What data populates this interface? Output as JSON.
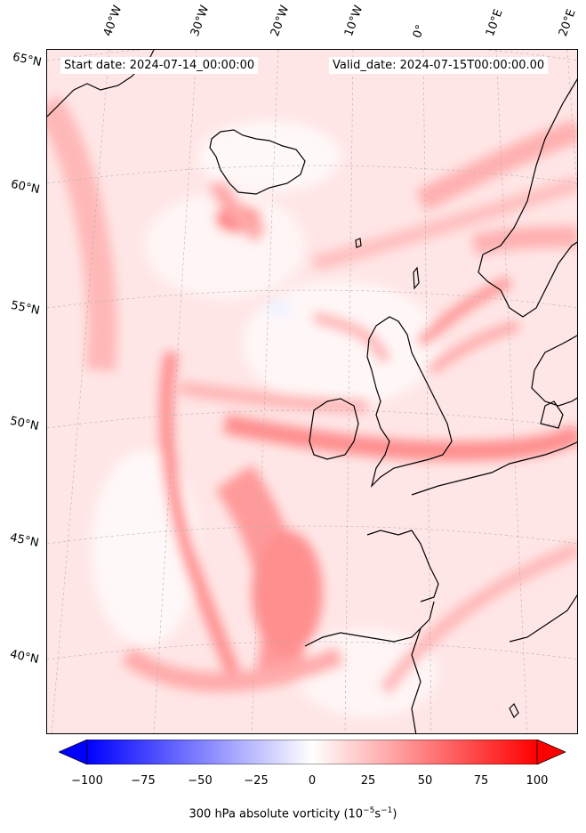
{
  "map": {
    "start_date": "Start date: 2024-07-14_00:00:00",
    "valid_date": "Valid_date: 2024-07-15T00:00:00.00",
    "lon_labels": [
      "40°W",
      "30°W",
      "20°W",
      "10°W",
      "0°",
      "10°E",
      "20°E"
    ],
    "lat_labels": [
      "65°N",
      "60°N",
      "55°N",
      "50°N",
      "45°N",
      "40°N"
    ],
    "field": "300 hPa absolute vorticity",
    "colormap": "bwr",
    "colors": {
      "max": "#ff0000",
      "mid": "#ffffff",
      "min": "#0000ff",
      "coast": "#000000"
    }
  },
  "colorbar": {
    "ticks": [
      "−100",
      "−75",
      "−50",
      "−25",
      "0",
      "25",
      "50",
      "75",
      "100"
    ],
    "label_main": "300 hPa absolute vorticity (10",
    "label_exp1": "−5",
    "label_mid": "s",
    "label_exp2": "−1",
    "label_end": ")",
    "range": [
      -100,
      100
    ],
    "extend": "both"
  }
}
